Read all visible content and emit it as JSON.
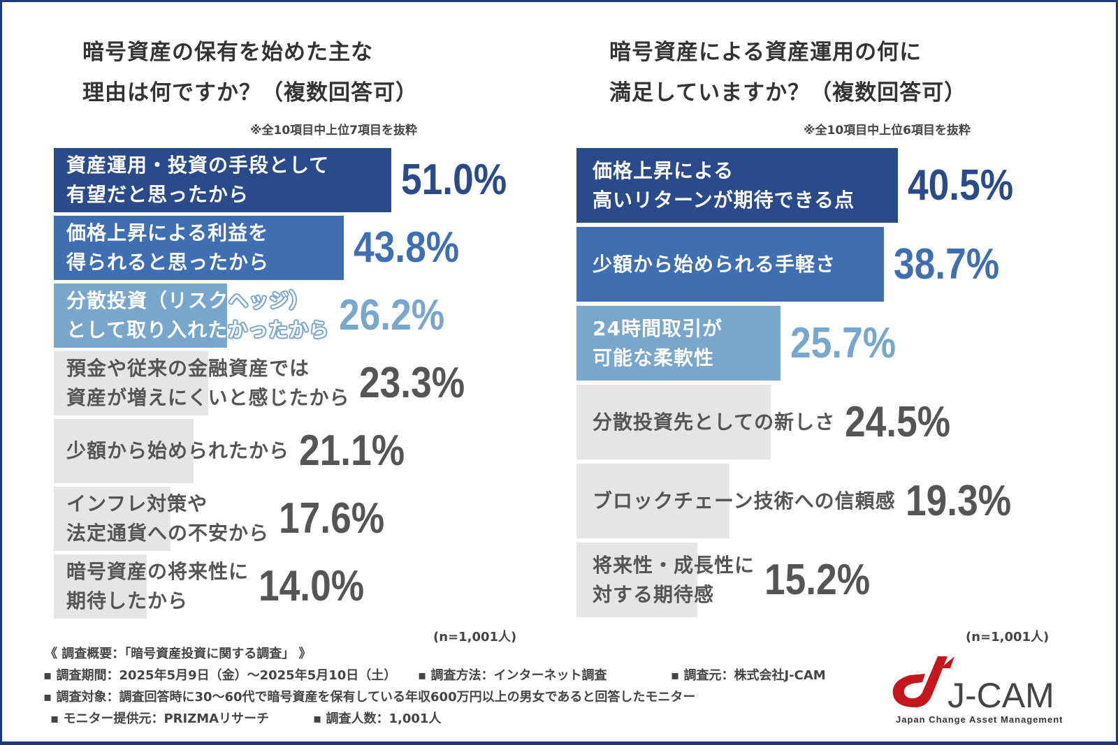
{
  "colors": {
    "dark": "#2b4a8a",
    "mid": "#3f6fb2",
    "light": "#78a6cc",
    "gray": "#e5e5e5",
    "gray_text": "#555555",
    "border": "#1f3a7a",
    "logo_red": "#c4161c"
  },
  "chart_data": [
    {
      "type": "bar",
      "orientation": "horizontal",
      "title_lines": [
        "暗号資産の保有を始めた主な",
        "理由は何ですか？（複数回答可）"
      ],
      "note": "※全10項目中上位7項目を抜粋",
      "sample": "(n=1,001人)",
      "unit": "%",
      "categories": [
        [
          "資産運用・投資の手段として",
          "有望だと思ったから"
        ],
        [
          "価格上昇による利益を",
          "得られると思ったから"
        ],
        [
          "分散投資（リスクヘッジ）",
          "として取り入れたかったから"
        ],
        [
          "預金や従来の金融資産では",
          "資産が増えにくいと感じたから"
        ],
        [
          "少額から始められたから"
        ],
        [
          "インフレ対策や",
          "法定通貨への不安から"
        ],
        [
          "暗号資産の将来性に",
          "期待したから"
        ]
      ],
      "values": [
        51.0,
        43.8,
        26.2,
        23.3,
        21.1,
        17.6,
        14.0
      ],
      "labels": [
        "51.0%",
        "43.8%",
        "26.2%",
        "23.3%",
        "21.1%",
        "17.6%",
        "14.0%"
      ],
      "bar_colors": [
        "dark",
        "mid",
        "light",
        "gray",
        "gray",
        "gray",
        "gray"
      ]
    },
    {
      "type": "bar",
      "orientation": "horizontal",
      "title_lines": [
        "暗号資産による資産運用の何に",
        "満足していますか？（複数回答可）"
      ],
      "note": "※全10項目中上位6項目を抜粋",
      "sample": "(n=1,001人)",
      "unit": "%",
      "categories": [
        [
          "価格上昇による",
          "高いリターンが期待できる点"
        ],
        [
          "少額から始められる手軽さ"
        ],
        [
          "24時間取引が",
          "可能な柔軟性"
        ],
        [
          "分散投資先としての新しさ"
        ],
        [
          "ブロックチェーン技術への信頼感"
        ],
        [
          "将来性・成長性に",
          "対する期待感"
        ]
      ],
      "values": [
        40.5,
        38.7,
        25.7,
        24.5,
        19.3,
        15.2
      ],
      "labels": [
        "40.5%",
        "38.7%",
        "25.7%",
        "24.5%",
        "19.3%",
        "15.2%"
      ],
      "bar_colors": [
        "dark",
        "mid",
        "light",
        "gray",
        "gray",
        "gray"
      ]
    }
  ],
  "footer": {
    "heading": "《 調査概要：「暗号資産投資に関する調査」 》",
    "period": "▪ 調査期間：2025年5月9日（金）～2025年5月10日（土）",
    "method": "▪ 調査方法：インターネット調査",
    "source": "▪ 調査元：株式会社J-CAM",
    "target": "▪ 調査対象：調査回答時に30～60代で暗号資産を保有している年収600万円以上の男女であると回答したモニター",
    "provider": "▪ モニター提供元：PRIZMAリサーチ",
    "count": "▪ 調査人数：1,001人"
  },
  "logo": {
    "name": "J-CAM",
    "tagline": "Japan Change Asset Management"
  }
}
